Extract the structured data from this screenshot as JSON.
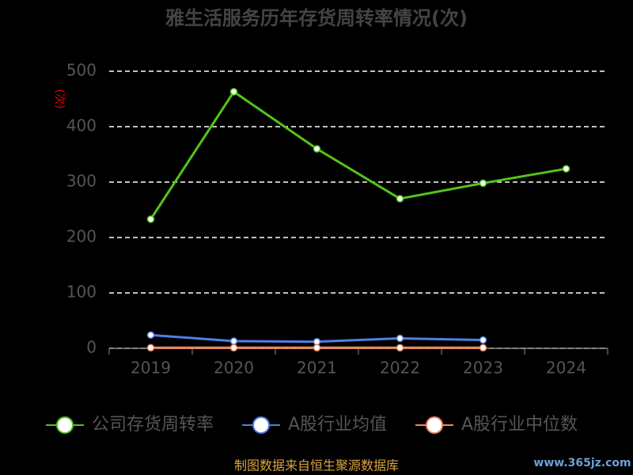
{
  "chart_data": {
    "type": "line",
    "title": "雅生活服务历年存货周转率情况(次)",
    "y_label": "(次)",
    "categories": [
      "2019",
      "2020",
      "2021",
      "2022",
      "2023",
      "2024"
    ],
    "series": [
      {
        "name": "公司存货周转率",
        "color": "#52c41a",
        "values": [
          233,
          463,
          360,
          270,
          298,
          324
        ]
      },
      {
        "name": "A股行业均值",
        "color": "#4f7fe8",
        "values": [
          24,
          13,
          12,
          18,
          15,
          null
        ]
      },
      {
        "name": "A股行业中位数",
        "color": "#f48a5c",
        "values": [
          1,
          1,
          1,
          1,
          1,
          null
        ]
      }
    ],
    "ylim": [
      0,
      500
    ],
    "yticks": [
      0,
      100,
      200,
      300,
      400,
      500
    ],
    "grid": true
  },
  "footer": "制图数据来自恒生聚源数据库",
  "watermark": "www.365jz.com"
}
